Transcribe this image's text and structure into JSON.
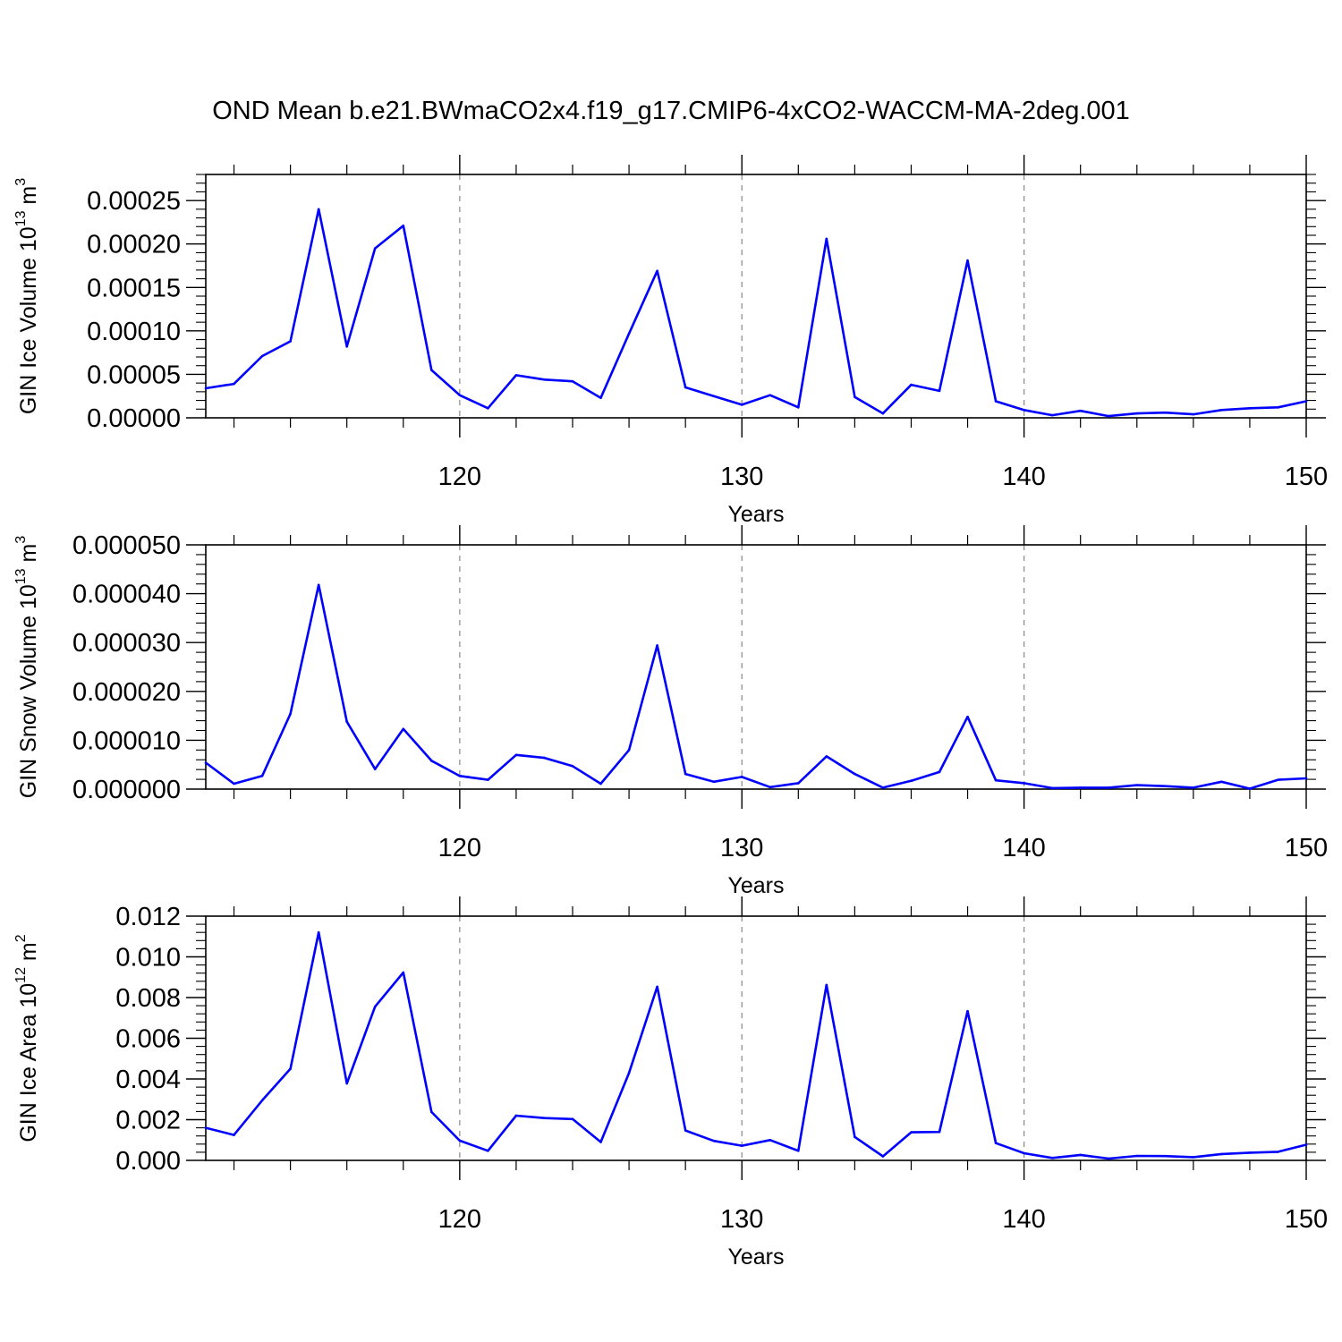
{
  "title": "OND Mean b.e21.BWmaCO2x4.f19_g17.CMIP6-4xCO2-WACCM-MA-2deg.001",
  "chart_data": [
    {
      "type": "line",
      "xlabel": "Years",
      "ylabel": {
        "prefix": "GIN Ice Volume 10",
        "exp": "13",
        "unit": " m",
        "unit_exp": "3"
      },
      "xlim": [
        111,
        150
      ],
      "ylim": [
        0,
        0.00028
      ],
      "xticks": [
        "120",
        "130",
        "140",
        "150"
      ],
      "xtick_values": [
        120,
        130,
        140,
        150
      ],
      "yticks": [
        "0.00000",
        "0.00005",
        "0.00010",
        "0.00015",
        "0.00020",
        "0.00025"
      ],
      "ytick_values": [
        0,
        5e-05,
        0.0001,
        0.00015,
        0.0002,
        0.00025
      ],
      "grid": "vertical dashed at major x ticks",
      "line_color": "#0000ff",
      "x": [
        111,
        112,
        113,
        114,
        115,
        116,
        117,
        118,
        119,
        120,
        121,
        122,
        123,
        124,
        125,
        126,
        127,
        128,
        129,
        130,
        131,
        132,
        133,
        134,
        135,
        136,
        137,
        138,
        139,
        140,
        141,
        142,
        143,
        144,
        145,
        146,
        147,
        148,
        149,
        150
      ],
      "values": [
        3.4e-05,
        3.9e-05,
        7.1e-05,
        8.8e-05,
        0.00024,
        8.2e-05,
        0.000195,
        0.000221,
        5.5e-05,
        2.6e-05,
        1.1e-05,
        4.9e-05,
        4.4e-05,
        4.2e-05,
        2.3e-05,
        9.7e-05,
        0.000169,
        3.5e-05,
        2.5e-05,
        1.5e-05,
        2.6e-05,
        1.2e-05,
        0.000206,
        2.4e-05,
        5e-06,
        3.8e-05,
        3.1e-05,
        0.000181,
        1.9e-05,
        9e-06,
        3e-06,
        8e-06,
        2e-06,
        5e-06,
        6e-06,
        4e-06,
        9e-06,
        1.1e-05,
        1.2e-05,
        1.9e-05
      ]
    },
    {
      "type": "line",
      "xlabel": "Years",
      "ylabel": {
        "prefix": "GIN Snow Volume 10",
        "exp": "13",
        "unit": " m",
        "unit_exp": "3"
      },
      "xlim": [
        111,
        150
      ],
      "ylim": [
        0,
        5e-05
      ],
      "xticks": [
        "120",
        "130",
        "140",
        "150"
      ],
      "xtick_values": [
        120,
        130,
        140,
        150
      ],
      "yticks": [
        "0.000000",
        "0.000010",
        "0.000020",
        "0.000030",
        "0.000040",
        "0.000050"
      ],
      "ytick_values": [
        0,
        1e-05,
        2e-05,
        3e-05,
        4e-05,
        5e-05
      ],
      "grid": "vertical dashed at major x ticks",
      "line_color": "#0000ff",
      "x": [
        111,
        112,
        113,
        114,
        115,
        116,
        117,
        118,
        119,
        120,
        121,
        122,
        123,
        124,
        125,
        126,
        127,
        128,
        129,
        130,
        131,
        132,
        133,
        134,
        135,
        136,
        137,
        138,
        139,
        140,
        141,
        142,
        143,
        144,
        145,
        146,
        147,
        148,
        149,
        150
      ],
      "values": [
        5.4e-06,
        1.1e-06,
        2.7e-06,
        1.54e-05,
        4.18e-05,
        1.38e-05,
        4.1e-06,
        1.23e-05,
        5.8e-06,
        2.7e-06,
        1.9e-06,
        7e-06,
        6.4e-06,
        4.7e-06,
        1.1e-06,
        8e-06,
        2.94e-05,
        3.1e-06,
        1.5e-06,
        2.5e-06,
        4e-07,
        1.2e-06,
        6.7e-06,
        3.1e-06,
        3e-07,
        1.7e-06,
        3.5e-06,
        1.48e-05,
        1.8e-06,
        1.2e-06,
        2e-07,
        3e-07,
        3e-07,
        8e-07,
        6e-07,
        3e-07,
        1.5e-06,
        1e-07,
        1.9e-06,
        2.2e-06
      ]
    },
    {
      "type": "line",
      "xlabel": "Years",
      "ylabel": {
        "prefix": "GIN Ice Area 10",
        "exp": "12",
        "unit": " m",
        "unit_exp": "2"
      },
      "xlim": [
        111,
        150
      ],
      "ylim": [
        0,
        0.012
      ],
      "xticks": [
        "120",
        "130",
        "140",
        "150"
      ],
      "xtick_values": [
        120,
        130,
        140,
        150
      ],
      "yticks": [
        "0.000",
        "0.002",
        "0.004",
        "0.006",
        "0.008",
        "0.010",
        "0.012"
      ],
      "ytick_values": [
        0,
        0.002,
        0.004,
        0.006,
        0.008,
        0.01,
        0.012
      ],
      "grid": "vertical dashed at major x ticks",
      "line_color": "#0000ff",
      "x": [
        111,
        112,
        113,
        114,
        115,
        116,
        117,
        118,
        119,
        120,
        121,
        122,
        123,
        124,
        125,
        126,
        127,
        128,
        129,
        130,
        131,
        132,
        133,
        134,
        135,
        136,
        137,
        138,
        139,
        140,
        141,
        142,
        143,
        144,
        145,
        146,
        147,
        148,
        149,
        150
      ],
      "values": [
        0.0016,
        0.00125,
        0.00295,
        0.0045,
        0.0112,
        0.00378,
        0.00755,
        0.00923,
        0.00238,
        0.00097,
        0.00047,
        0.0022,
        0.00208,
        0.00203,
        0.0009,
        0.0043,
        0.00853,
        0.00147,
        0.00096,
        0.00072,
        0.001,
        0.00047,
        0.00862,
        0.00115,
        0.0002,
        0.00138,
        0.0014,
        0.00733,
        0.00085,
        0.00035,
        0.00012,
        0.00027,
        9e-05,
        0.00022,
        0.00021,
        0.00016,
        0.00031,
        0.00038,
        0.00042,
        0.00077
      ]
    }
  ]
}
